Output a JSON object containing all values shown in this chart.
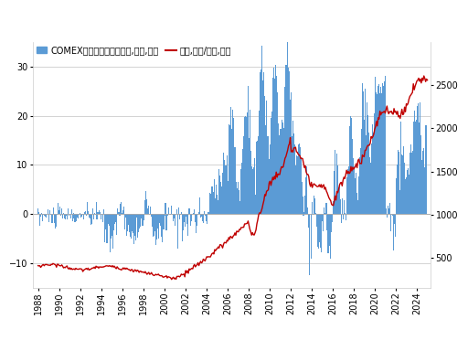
{
  "legend_bar": "COMEX黃金期貨投機淨部位,萬口,左軸",
  "legend_line": "金僷,美元/盎司,右軸",
  "bar_color": "#5b9bd5",
  "line_color": "#c00000",
  "bg_color": "#ffffff",
  "plot_bg_color": "#ffffff",
  "year_start": 1988,
  "year_end": 2025,
  "left_ylim": [
    -15,
    35
  ],
  "right_ylim": [
    150,
    3000
  ],
  "left_yticks": [
    -10,
    0,
    10,
    20,
    30
  ],
  "right_yticks": [
    500,
    1000,
    1500,
    2000,
    2500
  ],
  "xtick_step": 2
}
